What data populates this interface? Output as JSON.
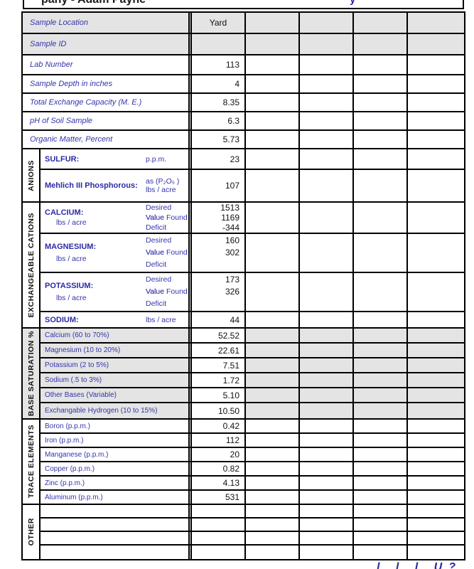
{
  "header": {
    "title_fragment": "pany - Adam Payne",
    "right_fragment": "y"
  },
  "top_rows": [
    {
      "label": "Sample Location",
      "value": "Yard"
    },
    {
      "label": "Sample ID",
      "value": ""
    },
    {
      "label": "Lab Number",
      "value": "113"
    },
    {
      "label": "Sample Depth in inches",
      "value": "4"
    },
    {
      "label": "Total Exchange Capacity (M. E.)",
      "value": "8.35"
    },
    {
      "label": "pH of Soil Sample",
      "value": "6.3"
    },
    {
      "label": "Organic Matter, Percent",
      "value": "5.73"
    }
  ],
  "anions": {
    "name": "ANIONS",
    "sulfur": {
      "label": "SULFUR:",
      "unit": "p.p.m.",
      "value": "23"
    },
    "mehlich": {
      "label": "Mehlich III Phosphorous:",
      "unit_line1": "as (P₂O₅ )",
      "unit_line2": "lbs / acre",
      "value": "107"
    }
  },
  "cations": {
    "name": "EXCHANGEABLE CATIONS",
    "units": {
      "u1": "Desired Value",
      "u2": "Value Found",
      "u3": "Deficit"
    },
    "calcium": {
      "label": "CALCIUM:",
      "sub": "lbs / acre",
      "v1": "1513",
      "v2": "1169",
      "v3": "-344"
    },
    "magnesium": {
      "label": "MAGNESIUM:",
      "sub": "lbs / acre",
      "v1": "160",
      "v2": "302",
      "v3": ""
    },
    "potassium": {
      "label": "POTASSIUM:",
      "sub": "lbs / acre",
      "v1": "173",
      "v2": "326",
      "v3": ""
    },
    "sodium": {
      "label": "SODIUM:",
      "unit": "lbs / acre",
      "value": "44"
    }
  },
  "base_saturation": {
    "name": "BASE SATURATION %",
    "rows": [
      {
        "label": "Calcium (60 to 70%)",
        "value": "52.52"
      },
      {
        "label": "Magnesium (10 to 20%)",
        "value": "22.61"
      },
      {
        "label": "Potassium (2 to 5%)",
        "value": "7.51"
      },
      {
        "label": "Sodium (.5 to 3%)",
        "value": "1.72"
      },
      {
        "label": "Other Bases (Variable)",
        "value": "5.10"
      },
      {
        "label": "Exchangable Hydrogen (10 to 15%)",
        "value": "10.50"
      }
    ]
  },
  "trace_elements": {
    "name": "TRACE ELEMENTS",
    "rows": [
      {
        "label": "Boron (p.p.m.)",
        "value": "0.42"
      },
      {
        "label": "Iron (p.p.m.)",
        "value": "112"
      },
      {
        "label": "Manganese (p.p.m.)",
        "value": "20"
      },
      {
        "label": "Copper (p.p.m.)",
        "value": "0.82"
      },
      {
        "label": "Zinc (p.p.m.)",
        "value": "4.13"
      },
      {
        "label": "Aluminum (p.p.m.)",
        "value": "531"
      }
    ]
  },
  "other": {
    "name": "OTHER"
  },
  "footer": {
    "note_fragment": "l l l U?"
  },
  "colors": {
    "label_blue": "#3434ad",
    "bold_blue": "#2b2ba6",
    "shade_gray": "#e4e4e4",
    "border_black": "#000000"
  }
}
